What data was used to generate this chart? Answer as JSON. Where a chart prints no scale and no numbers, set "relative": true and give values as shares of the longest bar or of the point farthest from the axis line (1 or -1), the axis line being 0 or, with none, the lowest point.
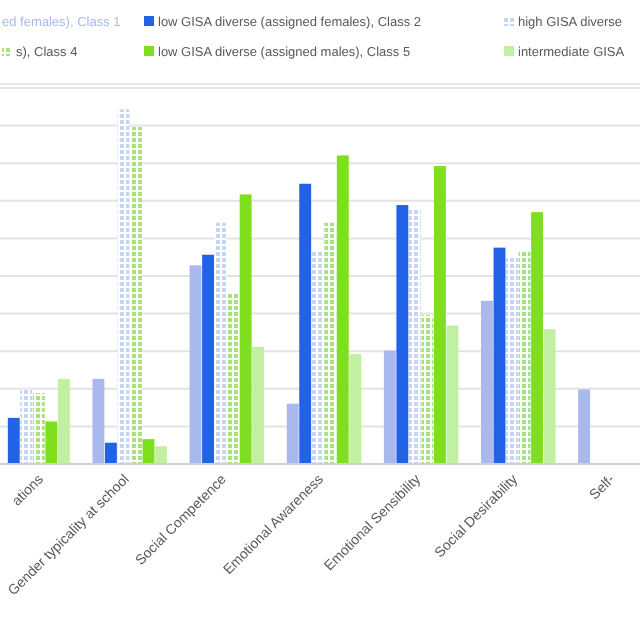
{
  "chart_data": {
    "type": "bar",
    "relative": true,
    "grid": "y",
    "legend": "top",
    "categories": [
      "ations",
      "Gender typicality at school",
      "Social Competence",
      "Emotional Awareness",
      "Emotional Sensibility",
      "Social Desirability",
      "Self-"
    ],
    "series": [
      {
        "name": "ed females), Class 1",
        "color": "#a9b9ee",
        "values": [
          null,
          0.24,
          0.56,
          0.17,
          0.32,
          0.46,
          0.21
        ]
      },
      {
        "name": "low GISA diverse (assigned females), Class 2",
        "color": "#2262e6",
        "values": [
          0.13,
          0.06,
          0.59,
          0.79,
          0.73,
          0.61,
          null
        ]
      },
      {
        "name": "high GISA diverse",
        "color": "#c4d6f4",
        "values": [
          0.21,
          1,
          0.68,
          0.6,
          0.72,
          0.58,
          null
        ]
      },
      {
        "name": "s), Class 4",
        "color": "#a6e27e",
        "values": [
          0.2,
          0.95,
          0.48,
          0.68,
          0.42,
          0.6,
          null
        ]
      },
      {
        "name": "low GISA diverse (assigned males), Class 5",
        "color": "#7fde1e",
        "values": [
          0.12,
          0.07,
          0.76,
          0.87,
          0.84,
          0.71,
          null
        ]
      },
      {
        "name": "intermediate GISA",
        "color": "#c2f0a2",
        "values": [
          0.24,
          0.05,
          0.33,
          0.31,
          0.39,
          0.38,
          null
        ]
      }
    ]
  }
}
